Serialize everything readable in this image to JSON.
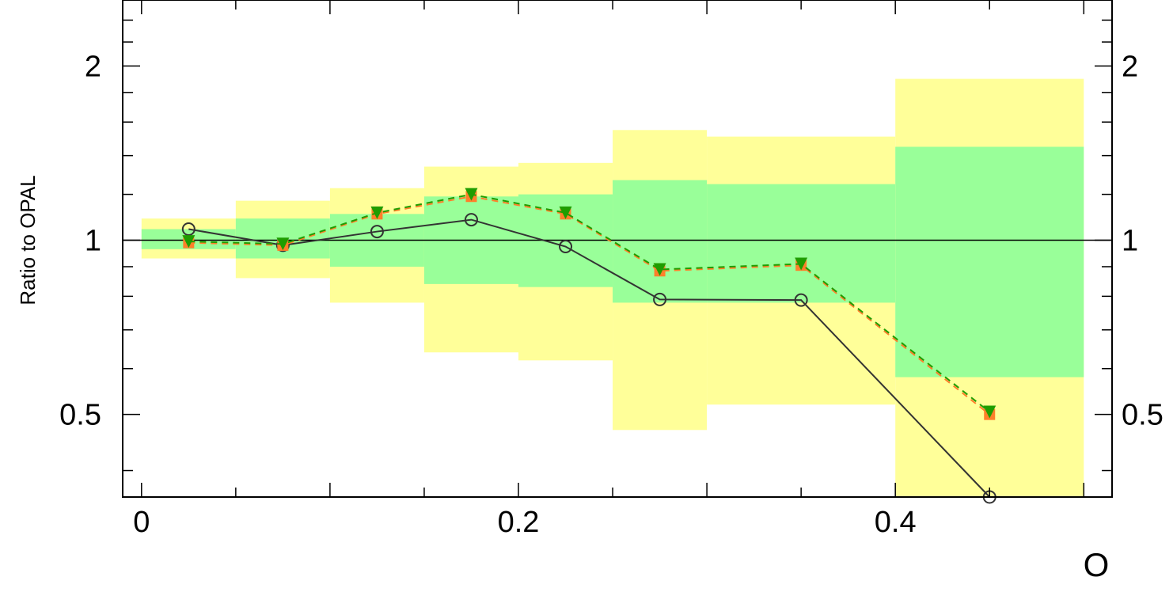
{
  "chart_data": {
    "type": "line",
    "xlabel": "O",
    "ylabel": "Ratio to OPAL",
    "xlim": [
      -0.01,
      0.515
    ],
    "ylim": [
      0.36,
      2.6
    ],
    "y_scale": "log",
    "grid": false,
    "x_ticks": [
      {
        "value": 0,
        "label": "0"
      },
      {
        "value": 0.2,
        "label": "0.2"
      },
      {
        "value": 0.4,
        "label": "0.4"
      }
    ],
    "y_ticks": [
      {
        "value": 0.5,
        "label": "0.5"
      },
      {
        "value": 1,
        "label": "1"
      },
      {
        "value": 2,
        "label": "2"
      }
    ],
    "reference_line": 1,
    "bands": [
      {
        "x0": 0.0,
        "x1": 0.05,
        "inner": [
          0.965,
          1.045
        ],
        "outer": [
          0.93,
          1.09
        ]
      },
      {
        "x0": 0.05,
        "x1": 0.1,
        "inner": [
          0.93,
          1.09
        ],
        "outer": [
          0.86,
          1.17
        ]
      },
      {
        "x0": 0.1,
        "x1": 0.15,
        "inner": [
          0.9,
          1.11
        ],
        "outer": [
          0.78,
          1.23
        ]
      },
      {
        "x0": 0.15,
        "x1": 0.2,
        "inner": [
          0.84,
          1.19
        ],
        "outer": [
          0.64,
          1.34
        ]
      },
      {
        "x0": 0.2,
        "x1": 0.25,
        "inner": [
          0.83,
          1.2
        ],
        "outer": [
          0.62,
          1.36
        ]
      },
      {
        "x0": 0.25,
        "x1": 0.3,
        "inner": [
          0.78,
          1.27
        ],
        "outer": [
          0.47,
          1.55
        ]
      },
      {
        "x0": 0.3,
        "x1": 0.4,
        "inner": [
          0.78,
          1.25
        ],
        "outer": [
          0.52,
          1.51
        ]
      },
      {
        "x0": 0.4,
        "x1": 0.5,
        "inner": [
          0.58,
          1.45
        ],
        "outer": [
          0.36,
          1.9
        ]
      }
    ],
    "colors": {
      "inner_band": "#99ff99",
      "outer_band": "#ffff99",
      "reference": "#000000",
      "series_circles": "#333333",
      "series_squares": "#ff7f2a",
      "series_triangles": "#1f9d00"
    },
    "series": [
      {
        "marker": "circle",
        "x": [
          0.025,
          0.075,
          0.125,
          0.175,
          0.225,
          0.275,
          0.35,
          0.45
        ],
        "values": [
          1.045,
          0.98,
          1.035,
          1.085,
          0.975,
          0.79,
          0.788,
          0.36
        ]
      },
      {
        "marker": "square",
        "x": [
          0.025,
          0.075,
          0.125,
          0.175,
          0.225,
          0.275,
          0.35,
          0.45
        ],
        "values": [
          0.99,
          0.98,
          1.11,
          1.19,
          1.11,
          0.885,
          0.905,
          0.5
        ]
      },
      {
        "marker": "triangle-down",
        "x": [
          0.025,
          0.075,
          0.125,
          0.175,
          0.225,
          0.275,
          0.35,
          0.45
        ],
        "values": [
          0.995,
          0.985,
          1.115,
          1.2,
          1.115,
          0.89,
          0.91,
          0.505
        ]
      }
    ]
  }
}
